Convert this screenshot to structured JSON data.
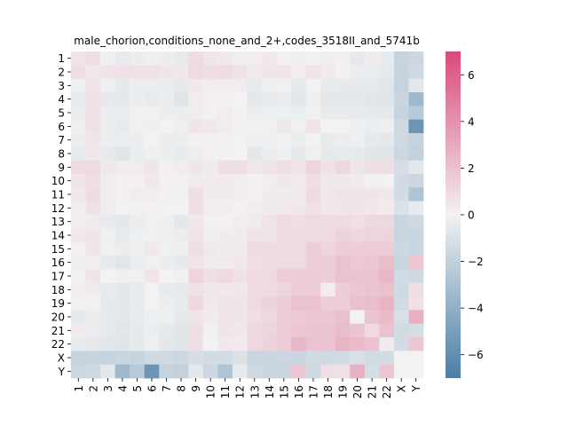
{
  "chart_data": {
    "type": "heatmap",
    "title": "male_chorion,conditions_none_and_2+,codes_3518II_and_5741b",
    "labels": [
      "1",
      "2",
      "3",
      "4",
      "5",
      "6",
      "7",
      "8",
      "9",
      "10",
      "11",
      "12",
      "13",
      "14",
      "15",
      "16",
      "17",
      "18",
      "19",
      "20",
      "21",
      "22",
      "X",
      "Y"
    ],
    "colorbar": {
      "vmin": -7,
      "vmax": 7,
      "ticks": [
        -6,
        -4,
        -2,
        0,
        2,
        4,
        6
      ],
      "tick_labels": [
        "−6",
        "−4",
        "−2",
        "0",
        "2",
        "4",
        "6"
      ],
      "colormap": "diverging blue-white-red",
      "low_color": "#4a7ea6",
      "mid_color": "#f2f2f2",
      "high_color": "#d94a77"
    },
    "values": [
      [
        0.6,
        0.8,
        -0.2,
        -0.4,
        -0.3,
        -0.2,
        -0.3,
        -0.4,
        0.9,
        0.5,
        0.4,
        0.2,
        0.2,
        0.4,
        0.1,
        -0.2,
        0.1,
        0.2,
        -0.1,
        -0.5,
        0.3,
        -0.4,
        -1.9,
        -1.6
      ],
      [
        0.8,
        0.4,
        0.6,
        0.7,
        0.7,
        0.7,
        0.5,
        0.4,
        1.0,
        0.8,
        0.9,
        0.7,
        0.3,
        0.5,
        0.5,
        0.2,
        0.6,
        0.3,
        0.1,
        -0.3,
        -0.3,
        -0.5,
        -1.8,
        -1.5
      ],
      [
        -0.2,
        0.6,
        -0.2,
        -0.5,
        -0.3,
        -0.3,
        -0.3,
        -0.5,
        0.4,
        0.2,
        0.2,
        0.2,
        -0.4,
        -0.2,
        -0.1,
        -0.5,
        0.0,
        -0.4,
        -0.5,
        -0.5,
        -0.5,
        -0.7,
        -1.9,
        -0.6
      ],
      [
        -0.4,
        0.7,
        -0.5,
        -0.6,
        -0.3,
        -0.4,
        -0.3,
        -0.8,
        0.2,
        0.1,
        0.1,
        0.0,
        -0.6,
        -0.4,
        -0.3,
        -0.7,
        -0.2,
        -0.6,
        -0.6,
        -0.6,
        -0.7,
        -0.8,
        -1.7,
        -3.4
      ],
      [
        -0.3,
        0.7,
        -0.3,
        -0.3,
        -0.1,
        -0.1,
        -0.3,
        -0.3,
        0.2,
        0.1,
        0.2,
        0.1,
        -0.3,
        -0.2,
        -0.2,
        -0.3,
        -0.1,
        -0.4,
        -0.4,
        -0.4,
        -0.5,
        -0.5,
        -1.8,
        -2.4
      ],
      [
        -0.2,
        0.7,
        -0.3,
        -0.4,
        -0.1,
        -0.2,
        0.0,
        -0.2,
        0.5,
        0.4,
        0.2,
        0.1,
        -0.1,
        -0.1,
        0.4,
        -0.1,
        0.6,
        0.0,
        0.0,
        -0.2,
        -0.3,
        -0.2,
        -1.5,
        -5.6
      ],
      [
        -0.3,
        0.5,
        -0.3,
        -0.3,
        -0.3,
        0.0,
        -0.3,
        -0.3,
        0.1,
        0.1,
        0.1,
        0.0,
        -0.2,
        -0.2,
        -0.1,
        -0.3,
        0.0,
        -0.4,
        -0.3,
        -0.2,
        -0.5,
        -0.6,
        -1.5,
        -1.9
      ],
      [
        -0.4,
        0.4,
        -0.5,
        -0.8,
        -0.3,
        -0.2,
        -0.3,
        -0.4,
        0.2,
        0.1,
        0.1,
        0.0,
        -0.6,
        -0.3,
        -0.2,
        -0.5,
        -0.1,
        -0.5,
        -0.4,
        -0.5,
        -0.8,
        -0.8,
        -1.6,
        -2.0
      ],
      [
        0.9,
        1.0,
        0.4,
        0.2,
        0.2,
        0.5,
        0.1,
        0.2,
        0.5,
        0.3,
        0.8,
        0.8,
        0.4,
        0.6,
        0.8,
        0.6,
        1.2,
        0.7,
        1.1,
        0.5,
        0.8,
        0.8,
        -1.2,
        -0.6
      ],
      [
        0.5,
        0.8,
        0.2,
        0.1,
        0.1,
        0.4,
        0.1,
        0.1,
        0.3,
        0.3,
        0.3,
        0.2,
        0.1,
        0.2,
        0.4,
        0.3,
        0.8,
        0.4,
        0.4,
        0.3,
        0.1,
        0.0,
        -1.3,
        -1.6
      ],
      [
        0.4,
        0.9,
        0.2,
        0.1,
        0.2,
        0.2,
        0.1,
        0.1,
        0.8,
        0.3,
        0.3,
        0.2,
        0.1,
        0.3,
        0.3,
        0.3,
        1.0,
        0.4,
        0.6,
        0.6,
        0.5,
        0.4,
        -1.3,
        -2.8
      ],
      [
        0.2,
        0.7,
        0.2,
        0.0,
        0.1,
        0.1,
        0.0,
        0.0,
        0.8,
        0.2,
        0.2,
        0.1,
        0.2,
        0.3,
        0.3,
        0.4,
        0.7,
        0.4,
        0.5,
        0.5,
        0.4,
        0.3,
        -1.0,
        -0.4
      ],
      [
        0.2,
        0.3,
        -0.4,
        -0.6,
        -0.3,
        -0.1,
        -0.2,
        -0.6,
        0.4,
        0.1,
        0.1,
        0.2,
        0.3,
        0.6,
        1.0,
        0.8,
        1.0,
        0.9,
        1.0,
        0.8,
        1.1,
        1.1,
        -1.7,
        -1.5
      ],
      [
        0.4,
        0.5,
        -0.2,
        -0.4,
        -0.2,
        -0.1,
        -0.2,
        -0.3,
        0.6,
        0.2,
        0.3,
        0.3,
        0.6,
        0.5,
        0.9,
        0.9,
        1.0,
        1.0,
        1.3,
        1.1,
        1.2,
        1.3,
        -1.7,
        -1.7
      ],
      [
        0.1,
        0.5,
        -0.1,
        -0.3,
        -0.2,
        0.4,
        -0.1,
        -0.2,
        0.8,
        0.4,
        0.3,
        0.3,
        1.0,
        0.9,
        1.0,
        1.0,
        1.5,
        1.2,
        1.6,
        1.5,
        1.6,
        1.6,
        -1.6,
        -1.7
      ],
      [
        -0.2,
        0.2,
        -0.5,
        -0.7,
        -0.3,
        -0.1,
        -0.3,
        -0.5,
        0.6,
        0.3,
        0.3,
        0.4,
        0.8,
        0.9,
        1.0,
        1.0,
        1.5,
        1.5,
        2.0,
        1.7,
        1.8,
        2.2,
        -1.7,
        1.8
      ],
      [
        0.1,
        0.6,
        0.0,
        -0.2,
        -0.1,
        0.6,
        0.0,
        -0.1,
        1.2,
        0.8,
        1.0,
        0.7,
        1.0,
        1.0,
        1.5,
        1.5,
        1.6,
        1.5,
        2.0,
        1.9,
        2.0,
        2.4,
        -1.4,
        -1.5
      ],
      [
        0.2,
        0.3,
        -0.4,
        -0.6,
        -0.4,
        0.0,
        -0.4,
        -0.5,
        0.7,
        0.4,
        0.4,
        0.4,
        0.9,
        1.0,
        1.2,
        1.5,
        1.5,
        0.2,
        1.5,
        1.8,
        1.9,
        2.1,
        -1.5,
        0.8
      ],
      [
        -0.1,
        0.1,
        -0.5,
        -0.6,
        -0.4,
        0.0,
        -0.3,
        -0.4,
        1.1,
        0.4,
        0.6,
        0.5,
        1.0,
        1.3,
        1.6,
        2.0,
        2.0,
        1.5,
        1.5,
        2.1,
        2.2,
        2.6,
        -1.4,
        0.7
      ],
      [
        -0.5,
        -0.3,
        -0.5,
        -0.6,
        -0.4,
        -0.2,
        -0.2,
        -0.5,
        0.5,
        0.3,
        0.6,
        0.5,
        0.8,
        1.1,
        1.5,
        1.7,
        1.8,
        1.8,
        2.1,
        0.0,
        1.9,
        2.3,
        -1.1,
        2.7
      ],
      [
        0.3,
        -0.3,
        -0.5,
        -0.7,
        -0.5,
        -0.3,
        -0.5,
        -0.8,
        0.8,
        0.1,
        0.5,
        0.4,
        1.1,
        1.2,
        1.6,
        1.8,
        1.9,
        1.9,
        2.2,
        1.9,
        1.0,
        2.0,
        -1.4,
        -1.2
      ],
      [
        -0.4,
        -0.5,
        -0.7,
        -0.8,
        -0.5,
        -0.2,
        -0.6,
        -0.8,
        0.8,
        0.0,
        0.4,
        0.3,
        1.1,
        1.3,
        1.6,
        2.4,
        2.0,
        1.9,
        2.6,
        2.3,
        2.0,
        0.3,
        -1.3,
        1.8
      ],
      [
        -1.9,
        -1.8,
        -1.9,
        -1.7,
        -1.8,
        -1.5,
        -1.5,
        -1.6,
        -1.2,
        -1.3,
        -1.3,
        -1.0,
        -1.7,
        -1.7,
        -1.6,
        -1.7,
        -1.4,
        -1.5,
        -1.4,
        -1.1,
        -1.4,
        -1.3,
        0.0,
        0.0
      ],
      [
        -1.6,
        -1.5,
        -0.6,
        -3.4,
        -2.4,
        -5.6,
        -1.9,
        -2.0,
        -0.6,
        -1.6,
        -2.8,
        -0.4,
        -1.5,
        -1.7,
        -1.7,
        1.8,
        -1.5,
        0.8,
        0.7,
        2.7,
        -1.2,
        1.8,
        0.0,
        0.0
      ]
    ]
  }
}
